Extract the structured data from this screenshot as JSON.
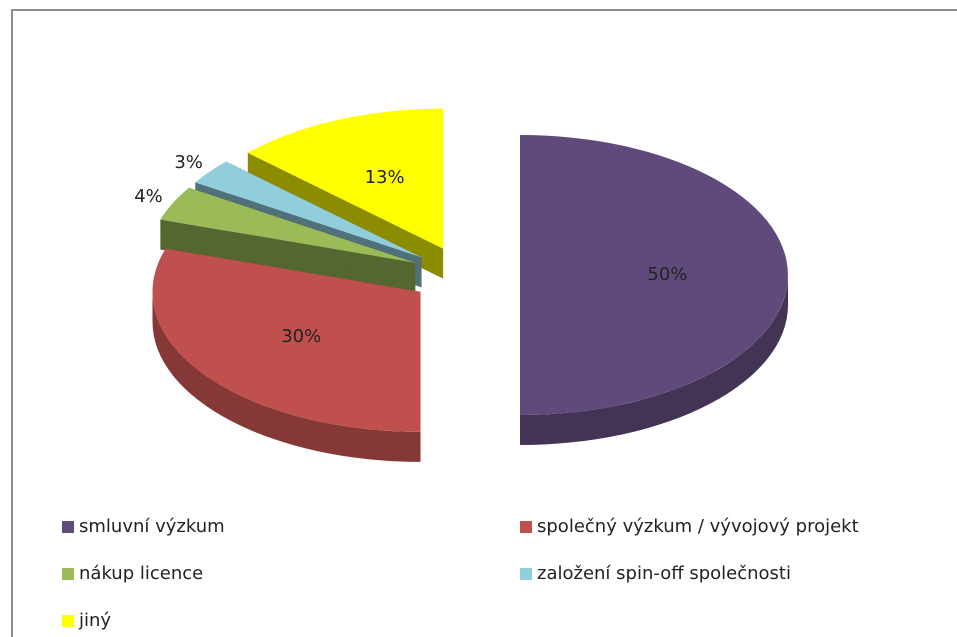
{
  "chart_data": {
    "type": "pie",
    "categories": [
      "smluvní výzkum",
      "společný výzkum / vývojový projekt",
      "nákup licence",
      "založení spin-off společnosti",
      "jiný"
    ],
    "values": [
      50,
      30,
      4,
      3,
      13
    ],
    "value_labels": [
      "50%",
      "30%",
      "4%",
      "3%",
      "13%"
    ],
    "colors": [
      "#604a7b",
      "#c0504d",
      "#9bbb59",
      "#92cddc",
      "#ffff00"
    ],
    "legend": "bottom"
  }
}
